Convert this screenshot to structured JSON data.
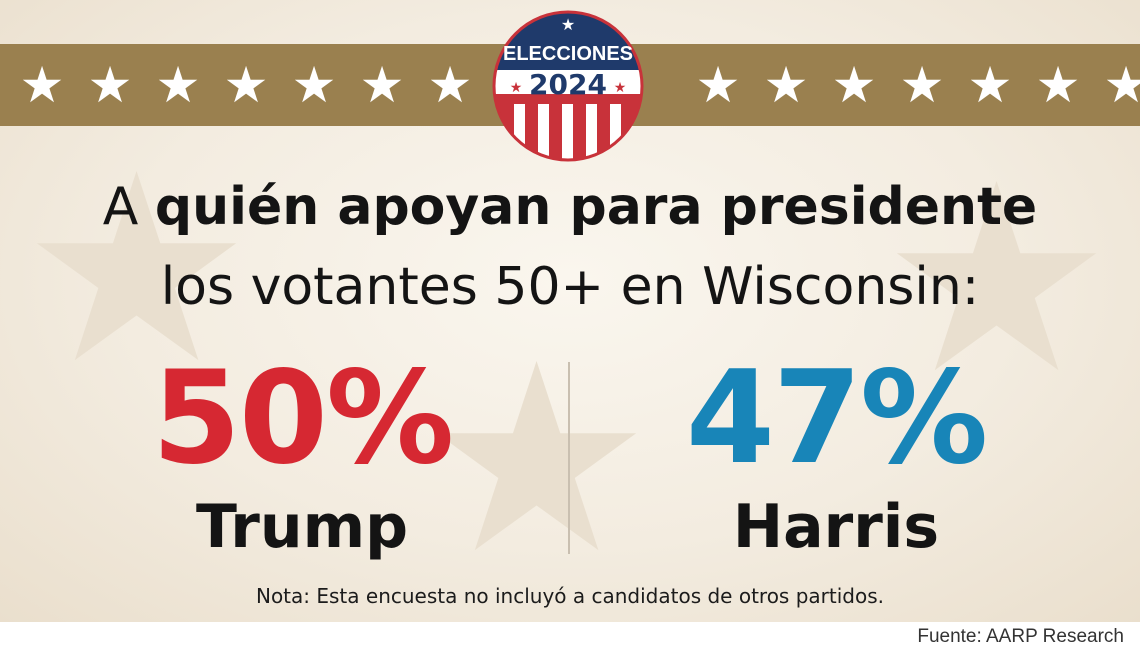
{
  "badge": {
    "top_text": "ELECCIONES",
    "year": "2024",
    "colors": {
      "navy": "#1f3a6b",
      "red": "#c8323a",
      "white": "#ffffff"
    }
  },
  "band": {
    "color": "#9a804f",
    "star_icon": "star-icon",
    "left_star_count": 7,
    "right_star_count": 7
  },
  "headline": {
    "prefix": "A ",
    "bold": "quién apoyan para presidente",
    "line2": "los votantes 50+ en Wisconsin:"
  },
  "results": [
    {
      "candidate": "Trump",
      "percent": "50%",
      "color": "#d62832"
    },
    {
      "candidate": "Harris",
      "percent": "47%",
      "color": "#1885b8"
    }
  ],
  "note": "Nota: Esta encuesta no incluyó a candidatos de otros partidos.",
  "source": "Fuente: AARP Research"
}
